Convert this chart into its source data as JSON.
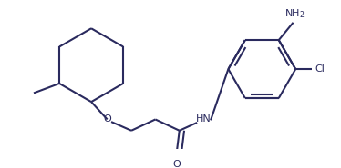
{
  "line_color": "#2a2a5e",
  "bg_color": "#ffffff",
  "lw": 1.5,
  "figsize": [
    3.74,
    1.85
  ],
  "dpi": 100,
  "xlim": [
    0,
    374
  ],
  "ylim": [
    0,
    185
  ]
}
